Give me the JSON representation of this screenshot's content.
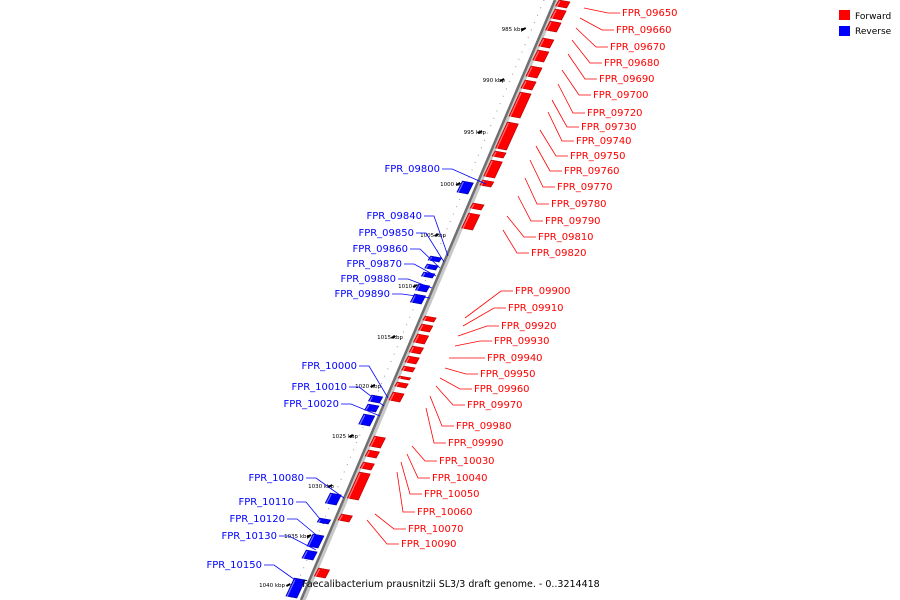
{
  "caption": "Faecalibacterium prausnitzii SL3/3 draft genome. - 0..3214418",
  "legend": {
    "forward_label": "Forward",
    "reverse_label": "Reverse",
    "forward_color": "#ff0000",
    "reverse_color": "#0000ff"
  },
  "kbp_ticks": [
    "985 kbp",
    "990 kbp",
    "995 kbp",
    "1000 kbp",
    "1005 kbp",
    "1010 kbp",
    "1015 kbp",
    "1020 kbp",
    "1025 kbp",
    "1030 kbp",
    "1035 kbp",
    "1040 kbp"
  ],
  "forward_labels": [
    "FPR_09650",
    "FPR_09660",
    "FPR_09670",
    "FPR_09680",
    "FPR_09690",
    "FPR_09700",
    "FPR_09720",
    "FPR_09730",
    "FPR_09740",
    "FPR_09750",
    "FPR_09760",
    "FPR_09770",
    "FPR_09780",
    "FPR_09790",
    "FPR_09810",
    "FPR_09820",
    "FPR_09900",
    "FPR_09910",
    "FPR_09920",
    "FPR_09930",
    "FPR_09940",
    "FPR_09950",
    "FPR_09960",
    "FPR_09970",
    "FPR_09980",
    "FPR_09990",
    "FPR_10030",
    "FPR_10040",
    "FPR_10050",
    "FPR_10060",
    "FPR_10070",
    "FPR_10090"
  ],
  "reverse_labels": [
    "FPR_09800",
    "FPR_09840",
    "FPR_09850",
    "FPR_09860",
    "FPR_09870",
    "FPR_09880",
    "FPR_09890",
    "FPR_10000",
    "FPR_10010",
    "FPR_10020",
    "FPR_10080",
    "FPR_10110",
    "FPR_10120",
    "FPR_10130",
    "FPR_10150"
  ]
}
